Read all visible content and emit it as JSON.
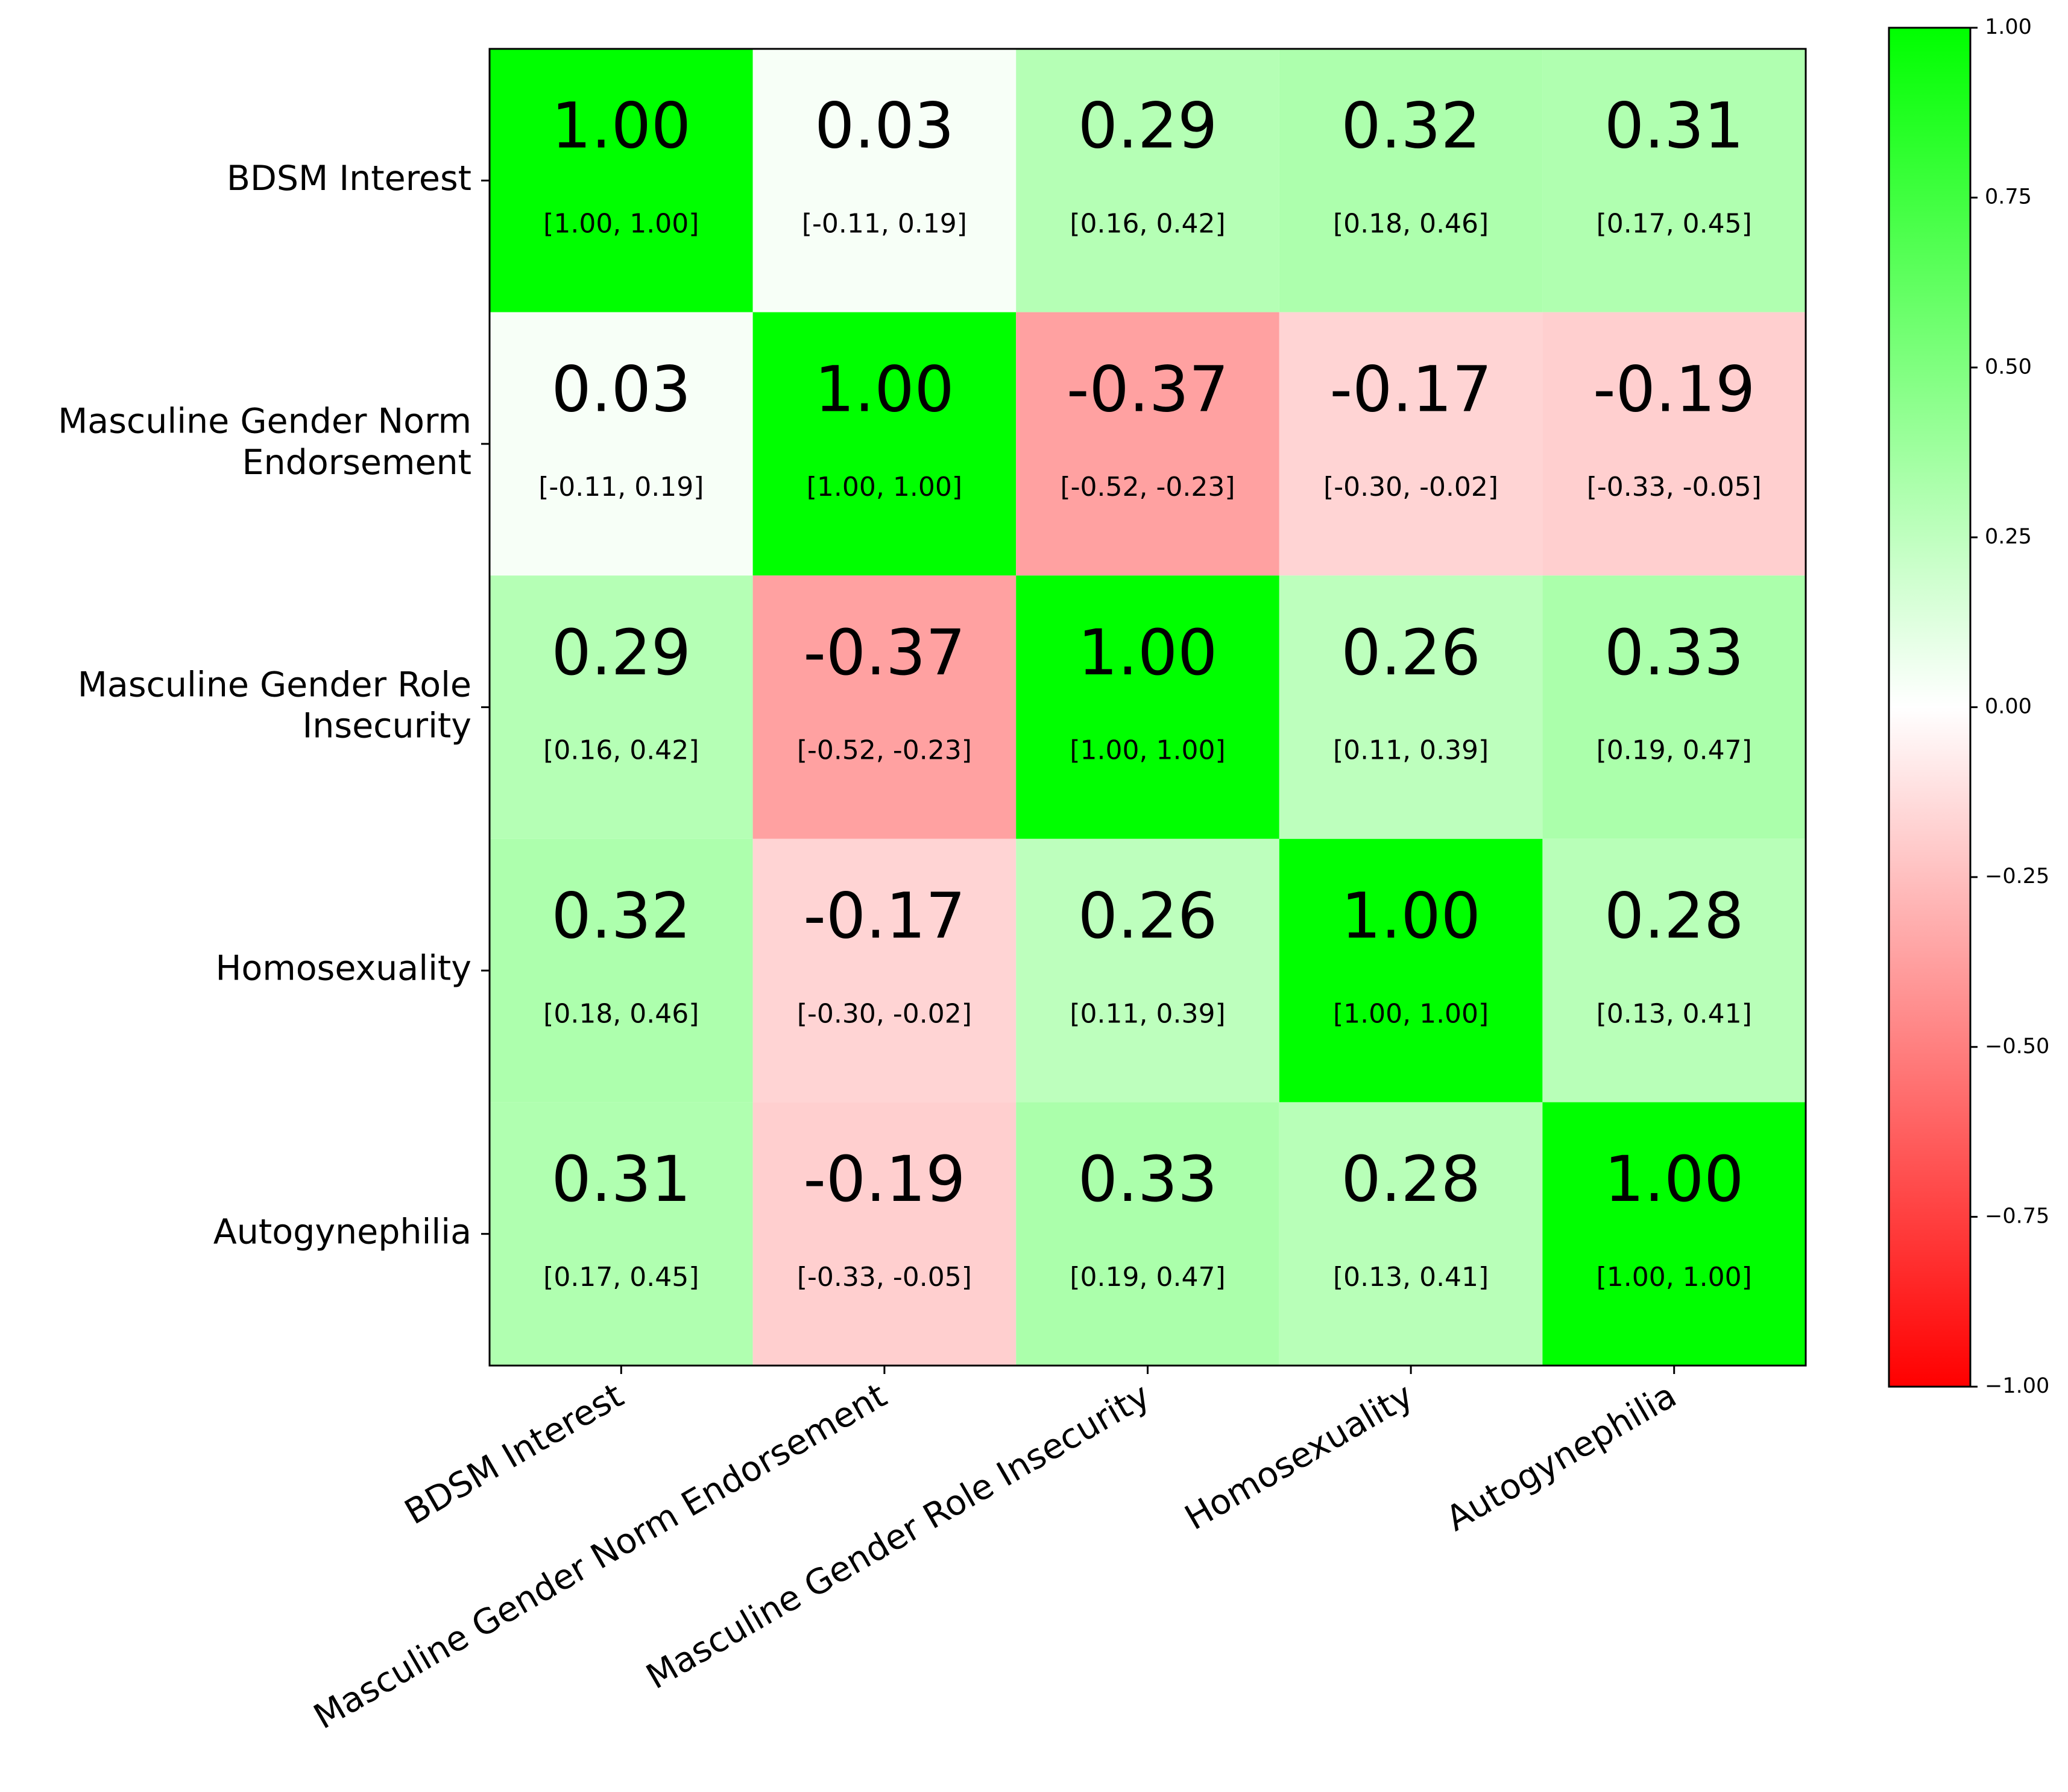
{
  "chart_data": {
    "type": "heatmap",
    "x_categories": [
      "BDSM Interest",
      "Masculine Gender Norm Endorsement",
      "Masculine Gender Role Insecurity",
      "Homosexuality",
      "Autogynephilia"
    ],
    "y_categories": [
      "BDSM Interest",
      "Masculine Gender Norm\nEndorsement",
      "Masculine Gender Role\nInsecurity",
      "Homosexuality",
      "Autogynephilia"
    ],
    "values": [
      [
        1.0,
        0.03,
        0.29,
        0.32,
        0.31
      ],
      [
        0.03,
        1.0,
        -0.37,
        -0.17,
        -0.19
      ],
      [
        0.29,
        -0.37,
        1.0,
        0.26,
        0.33
      ],
      [
        0.32,
        -0.17,
        0.26,
        1.0,
        0.28
      ],
      [
        0.31,
        -0.19,
        0.33,
        0.28,
        1.0
      ]
    ],
    "value_labels": [
      [
        "1.00",
        "0.03",
        "0.29",
        "0.32",
        "0.31"
      ],
      [
        "0.03",
        "1.00",
        "-0.37",
        "-0.17",
        "-0.19"
      ],
      [
        "0.29",
        "-0.37",
        "1.00",
        "0.26",
        "0.33"
      ],
      [
        "0.32",
        "-0.17",
        "0.26",
        "1.00",
        "0.28"
      ],
      [
        "0.31",
        "-0.19",
        "0.33",
        "0.28",
        "1.00"
      ]
    ],
    "ci_labels": [
      [
        "[1.00, 1.00]",
        "[-0.11, 0.19]",
        "[0.16, 0.42]",
        "[0.18, 0.46]",
        "[0.17, 0.45]"
      ],
      [
        "[-0.11, 0.19]",
        "[1.00, 1.00]",
        "[-0.52, -0.23]",
        "[-0.30, -0.02]",
        "[-0.33, -0.05]"
      ],
      [
        "[0.16, 0.42]",
        "[-0.52, -0.23]",
        "[1.00, 1.00]",
        "[0.11, 0.39]",
        "[0.19, 0.47]"
      ],
      [
        "[0.18, 0.46]",
        "[-0.30, -0.02]",
        "[0.11, 0.39]",
        "[1.00, 1.00]",
        "[0.13, 0.41]"
      ],
      [
        "[0.17, 0.45]",
        "[-0.33, -0.05]",
        "[0.19, 0.47]",
        "[0.13, 0.41]",
        "[1.00, 1.00]"
      ]
    ],
    "colormap": [
      "#ff0000",
      "#ffffff",
      "#00ff00"
    ],
    "clim": [
      -1,
      1
    ],
    "cticks": [
      {
        "value": 1,
        "label": "1.00"
      },
      {
        "value": 0.75,
        "label": "0.75"
      },
      {
        "value": 0.5,
        "label": "0.50"
      },
      {
        "value": 0.25,
        "label": "0.25"
      },
      {
        "value": 0,
        "label": "0.00"
      },
      {
        "value": -0.25,
        "label": "−0.25"
      },
      {
        "value": -0.5,
        "label": "−0.50"
      },
      {
        "value": -0.75,
        "label": "−0.75"
      },
      {
        "value": -1,
        "label": "−1.00"
      }
    ]
  }
}
